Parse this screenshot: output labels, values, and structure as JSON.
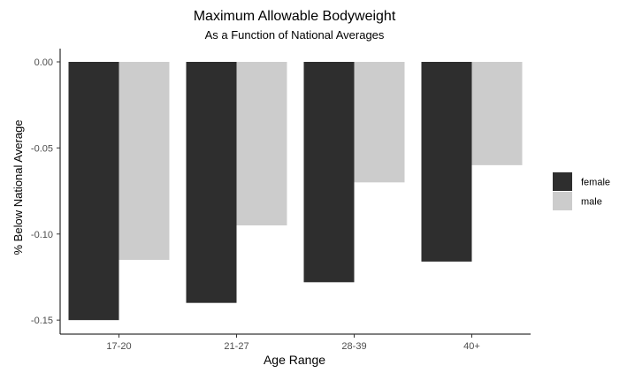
{
  "chart_data": {
    "type": "bar",
    "title": "Maximum Allowable Bodyweight",
    "subtitle": "As a Function of National Averages",
    "xlabel": "Age Range",
    "ylabel": "% Below National Average",
    "categories": [
      "17-20",
      "21-27",
      "28-39",
      "40+"
    ],
    "series": [
      {
        "name": "female",
        "color": "#2e2e2e",
        "values": [
          -0.15,
          -0.14,
          -0.128,
          -0.116
        ]
      },
      {
        "name": "male",
        "color": "#cccccc",
        "values": [
          -0.115,
          -0.095,
          -0.07,
          -0.06
        ]
      }
    ],
    "ylim": [
      -0.153,
      0.0
    ],
    "yticks": [
      0.0,
      -0.05,
      -0.1,
      -0.15
    ],
    "ytick_labels": [
      "0.00",
      "-0.05",
      "-0.10",
      "-0.15"
    ],
    "grid": false,
    "legend_position": "right"
  }
}
